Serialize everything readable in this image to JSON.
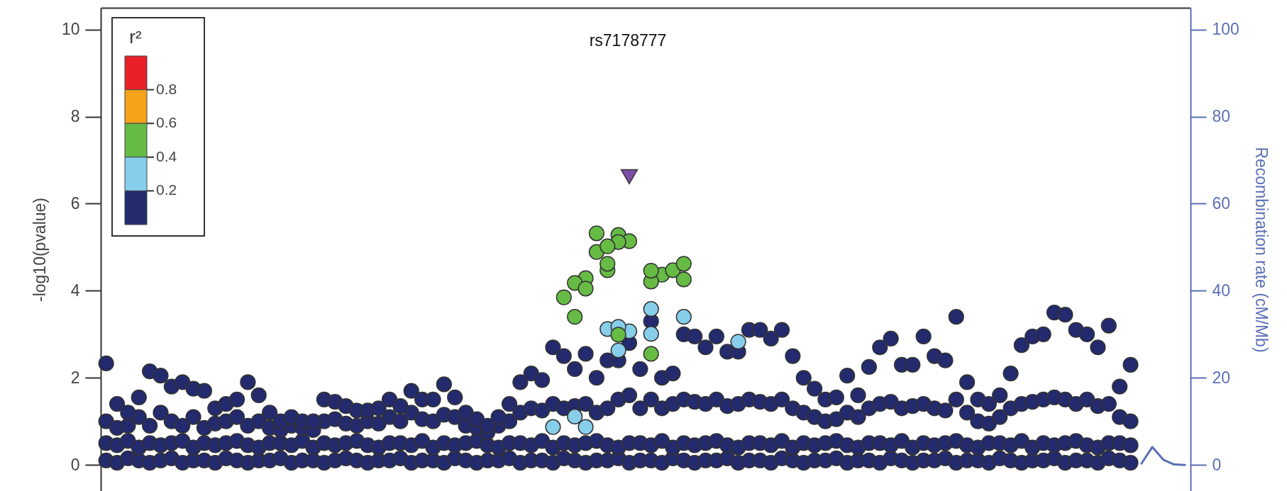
{
  "chart_data": {
    "type": "scatter",
    "title": "rs7178777",
    "ylabel": "-log10(pvalue)",
    "y2label": "Recombination rate (cM/Mb)",
    "annotations": [
      "r²",
      "0.8",
      "0.6",
      "0.4",
      "0.2"
    ],
    "tick_labels": "y",
    "ylim": [
      -0.6,
      10.5
    ],
    "yticks": [
      0,
      2,
      4,
      6,
      8,
      10
    ],
    "y2lim": [
      -6,
      105
    ],
    "y2ticks": [
      0,
      20,
      40,
      60,
      80,
      100
    ],
    "categories": [
      null,
      null,
      null,
      null,
      null,
      null,
      null,
      null,
      null,
      null,
      null,
      null,
      null,
      null,
      null,
      null,
      null,
      null,
      null,
      null,
      null,
      null,
      null,
      null,
      null,
      null,
      null,
      null,
      null,
      null,
      null,
      null,
      null,
      null,
      null,
      null,
      null,
      null,
      null,
      null,
      null,
      null,
      null,
      null,
      null,
      null,
      null,
      null,
      null,
      null,
      null,
      null,
      null,
      null,
      null,
      null,
      null,
      null,
      null,
      null,
      null,
      null,
      null,
      null,
      null,
      null,
      null,
      null,
      null,
      null,
      null,
      null,
      null,
      null,
      null,
      null,
      null,
      null,
      null,
      null,
      null,
      null,
      null,
      null,
      null,
      null,
      null,
      null,
      null,
      null,
      null,
      null,
      null,
      null,
      null,
      null,
      null,
      null,
      null,
      null
    ],
    "series": [
      {
        "marker": "circle",
        "color": "#232a6e",
        "values": [
          0.1,
          0.05,
          0.15,
          0.1,
          0.05,
          0.1,
          0.15,
          0.05,
          0.1,
          0.1,
          0.05,
          0.15,
          0.1,
          0.05,
          0.1,
          0.1,
          0.15,
          0.05,
          0.1,
          0.1,
          0.05,
          0.1,
          0.15,
          0.1,
          0.05,
          0.1,
          0.1,
          0.15,
          0.05,
          0.1,
          0.1,
          0.05,
          0.15,
          0.1,
          0.05,
          0.1,
          0.1,
          0.15,
          0.05,
          0.1,
          0.1,
          0.05,
          0.15,
          0.1,
          0.05,
          0.1,
          0.1,
          0.15,
          0.05,
          0.1,
          0.1,
          0.05,
          0.15,
          0.1,
          0.05,
          0.1,
          0.1,
          0.15,
          0.05,
          0.1,
          0.1,
          0.05,
          0.15,
          0.1,
          0.05,
          0.1,
          0.1,
          0.15,
          0.05,
          0.1,
          0.1,
          0.05,
          0.15,
          0.1,
          0.05,
          0.1,
          0.1,
          0.15,
          0.05,
          0.1,
          0.1,
          0.05,
          0.15,
          0.1,
          0.05,
          0.1,
          0.1,
          0.15,
          0.05,
          0.1,
          0.1,
          0.05,
          0.15,
          0.1,
          0.05,
          null,
          null,
          null,
          null,
          null
        ]
      },
      {
        "marker": "circle",
        "color": "#232a6e",
        "values": [
          0.5,
          0.45,
          0.55,
          0.4,
          0.5,
          0.45,
          0.5,
          0.55,
          0.4,
          0.5,
          0.45,
          0.5,
          0.55,
          0.45,
          0.4,
          0.5,
          0.5,
          0.45,
          0.55,
          0.4,
          0.5,
          0.45,
          0.5,
          0.55,
          0.45,
          0.4,
          0.5,
          0.5,
          0.45,
          0.55,
          0.4,
          0.5,
          0.45,
          0.5,
          0.55,
          0.45,
          0.4,
          0.5,
          0.5,
          0.45,
          0.55,
          0.4,
          0.5,
          0.45,
          0.5,
          0.55,
          0.45,
          0.4,
          0.5,
          0.5,
          0.45,
          0.55,
          0.4,
          0.5,
          0.45,
          0.5,
          0.55,
          0.45,
          0.4,
          0.5,
          0.5,
          0.45,
          0.55,
          0.4,
          0.5,
          0.45,
          0.5,
          0.55,
          0.45,
          0.4,
          0.5,
          0.5,
          0.45,
          0.55,
          0.4,
          0.5,
          0.45,
          0.5,
          0.55,
          0.45,
          0.4,
          0.5,
          0.5,
          0.45,
          0.55,
          0.4,
          0.5,
          0.45,
          0.5,
          0.55,
          0.45,
          0.4,
          0.5,
          0.5,
          0.45,
          null,
          null,
          null,
          null,
          null
        ]
      },
      {
        "marker": "circle",
        "color": "#232a6e",
        "values": [
          1.0,
          0.85,
          0.9,
          1.1,
          0.9,
          1.2,
          1.0,
          0.9,
          1.1,
          0.85,
          0.95,
          1.0,
          1.1,
          0.9,
          1.0,
          0.85,
          0.8,
          0.9,
          0.85,
          0.8,
          1.0,
          1.05,
          0.95,
          0.9,
          1.0,
          0.95,
          1.1,
          1.0,
          1.2,
          1.05,
          1.0,
          1.15,
          1.1,
          0.9,
          0.85,
          0.75,
          0.9,
          1.0,
          1.2,
          1.3,
          1.25,
          1.4,
          1.3,
          1.35,
          1.4,
          1.2,
          1.3,
          1.5,
          1.6,
          1.3,
          1.5,
          1.3,
          1.4,
          1.5,
          1.45,
          1.4,
          1.5,
          1.35,
          1.4,
          1.5,
          1.45,
          1.4,
          1.5,
          1.3,
          1.2,
          1.1,
          1.0,
          1.05,
          1.2,
          1.1,
          1.3,
          1.4,
          1.45,
          1.3,
          1.35,
          1.4,
          1.3,
          1.25,
          1.5,
          1.2,
          1.0,
          0.95,
          1.1,
          1.3,
          1.4,
          1.45,
          1.5,
          1.55,
          1.5,
          1.4,
          1.5,
          1.35,
          1.4,
          1.1,
          1.0,
          null,
          null,
          null,
          null,
          null
        ]
      },
      {
        "marker": "circle",
        "color": "#232a6e",
        "values": [
          2.33,
          1.4,
          1.2,
          1.55,
          2.15,
          2.05,
          1.8,
          1.9,
          1.75,
          1.7,
          1.3,
          1.4,
          1.5,
          1.9,
          1.6,
          1.2,
          1.0,
          1.1,
          1.0,
          1.0,
          1.5,
          1.45,
          1.35,
          1.25,
          1.25,
          1.3,
          1.5,
          1.35,
          1.7,
          1.5,
          1.5,
          1.85,
          1.55,
          1.2,
          1.05,
          0.9,
          1.1,
          1.4,
          1.9,
          2.1,
          1.95,
          2.7,
          2.5,
          2.2,
          2.55,
          2.0,
          2.4,
          2.4,
          2.8,
          2.2,
          3.3,
          2.0,
          2.1,
          3.0,
          2.95,
          2.7,
          2.95,
          2.6,
          2.6,
          3.1,
          3.1,
          2.9,
          3.1,
          2.5,
          2.0,
          1.75,
          1.5,
          1.55,
          2.05,
          1.6,
          2.25,
          2.7,
          2.9,
          2.3,
          2.3,
          2.95,
          2.5,
          2.4,
          3.4,
          1.9,
          1.5,
          1.4,
          1.6,
          2.1,
          2.75,
          2.95,
          3.0,
          3.5,
          3.45,
          3.1,
          3.0,
          2.7,
          3.2,
          1.8,
          2.3,
          null,
          null,
          null,
          null,
          null
        ]
      },
      {
        "marker": "circle",
        "color": "#87ceeb",
        "values": [
          null,
          null,
          null,
          null,
          null,
          null,
          null,
          null,
          null,
          null,
          null,
          null,
          null,
          null,
          null,
          null,
          null,
          null,
          null,
          null,
          null,
          null,
          null,
          null,
          null,
          null,
          null,
          null,
          null,
          null,
          null,
          null,
          null,
          null,
          null,
          null,
          null,
          null,
          null,
          null,
          null,
          0.87,
          null,
          1.11,
          0.87,
          null,
          3.12,
          2.63,
          3.07,
          null,
          3.58,
          null,
          null,
          3.4,
          null,
          null,
          null,
          null,
          2.83,
          null,
          null,
          null,
          null,
          null,
          null,
          null,
          null,
          null,
          null,
          null,
          null,
          null,
          null,
          null,
          null,
          null,
          null,
          null,
          null,
          null,
          null,
          null,
          null,
          null,
          null,
          null,
          null,
          null,
          null,
          null,
          null,
          null,
          null,
          null,
          null,
          null,
          null,
          null,
          null,
          null
        ]
      },
      {
        "marker": "circle",
        "color": "#87ceeb",
        "values": [
          null,
          null,
          null,
          null,
          null,
          null,
          null,
          null,
          null,
          null,
          null,
          null,
          null,
          null,
          null,
          null,
          null,
          null,
          null,
          null,
          null,
          null,
          null,
          null,
          null,
          null,
          null,
          null,
          null,
          null,
          null,
          null,
          null,
          null,
          null,
          null,
          null,
          null,
          null,
          null,
          null,
          null,
          null,
          null,
          null,
          null,
          null,
          3.17,
          null,
          null,
          3.01,
          null,
          null,
          null,
          null,
          null,
          null,
          null,
          null,
          null,
          null,
          null,
          null,
          null,
          null,
          null,
          null,
          null,
          null,
          null,
          null,
          null,
          null,
          null,
          null,
          null,
          null,
          null,
          null,
          null,
          null,
          null,
          null,
          null,
          null,
          null,
          null,
          null,
          null,
          null,
          null,
          null,
          null,
          null,
          null,
          null,
          null,
          null,
          null,
          null
        ]
      },
      {
        "marker": "circle",
        "color": "#66bb44",
        "values": [
          null,
          null,
          null,
          null,
          null,
          null,
          null,
          null,
          null,
          null,
          null,
          null,
          null,
          null,
          null,
          null,
          null,
          null,
          null,
          null,
          null,
          null,
          null,
          null,
          null,
          null,
          null,
          null,
          null,
          null,
          null,
          null,
          null,
          null,
          null,
          null,
          null,
          null,
          null,
          null,
          null,
          null,
          3.85,
          3.4,
          4.29,
          4.89,
          4.47,
          5.28,
          5.14,
          null,
          2.55,
          4.37,
          4.47,
          4.62,
          null,
          null,
          null,
          null,
          null,
          null,
          null,
          null,
          null,
          null,
          null,
          null,
          null,
          null,
          null,
          null,
          null,
          null,
          null,
          null,
          null,
          null,
          null,
          null,
          null,
          null,
          null,
          null,
          null,
          null,
          null,
          null,
          null,
          null,
          null,
          null,
          null,
          null,
          null,
          null,
          null,
          null,
          null,
          null,
          null,
          null
        ]
      },
      {
        "marker": "circle",
        "color": "#66bb44",
        "values": [
          null,
          null,
          null,
          null,
          null,
          null,
          null,
          null,
          null,
          null,
          null,
          null,
          null,
          null,
          null,
          null,
          null,
          null,
          null,
          null,
          null,
          null,
          null,
          null,
          null,
          null,
          null,
          null,
          null,
          null,
          null,
          null,
          null,
          null,
          null,
          null,
          null,
          null,
          null,
          null,
          null,
          null,
          null,
          4.18,
          4.05,
          5.32,
          4.62,
          5.12,
          null,
          null,
          4.21,
          null,
          null,
          4.26,
          null,
          null,
          null,
          null,
          null,
          null,
          null,
          null,
          null,
          null,
          null,
          null,
          null,
          null,
          null,
          null,
          null,
          null,
          null,
          null,
          null,
          null,
          null,
          null,
          null,
          null,
          null,
          null,
          null,
          null,
          null,
          null,
          null,
          null,
          null,
          null,
          null,
          null,
          null,
          null,
          null,
          null,
          null,
          null,
          null,
          null
        ]
      },
      {
        "marker": "circle",
        "color": "#66bb44",
        "values": [
          null,
          null,
          null,
          null,
          null,
          null,
          null,
          null,
          null,
          null,
          null,
          null,
          null,
          null,
          null,
          null,
          null,
          null,
          null,
          null,
          null,
          null,
          null,
          null,
          null,
          null,
          null,
          null,
          null,
          null,
          null,
          null,
          null,
          null,
          null,
          null,
          null,
          null,
          null,
          null,
          null,
          null,
          null,
          null,
          null,
          null,
          5.02,
          2.99,
          null,
          null,
          4.46,
          null,
          null,
          null,
          null,
          null,
          null,
          null,
          null,
          null,
          null,
          null,
          null,
          null,
          null,
          null,
          null,
          null,
          null,
          null,
          null,
          null,
          null,
          null,
          null,
          null,
          null,
          null,
          null,
          null,
          null,
          null,
          null,
          null,
          null,
          null,
          null,
          null,
          null,
          null,
          null,
          null,
          null,
          null,
          null,
          null,
          null,
          null,
          null,
          null
        ]
      },
      {
        "marker": "triangle",
        "color": "#7b4fa6",
        "values": [
          null,
          null,
          null,
          null,
          null,
          null,
          null,
          null,
          null,
          null,
          null,
          null,
          null,
          null,
          null,
          null,
          null,
          null,
          null,
          null,
          null,
          null,
          null,
          null,
          null,
          null,
          null,
          null,
          null,
          null,
          null,
          null,
          null,
          null,
          null,
          null,
          null,
          null,
          null,
          null,
          null,
          null,
          null,
          null,
          null,
          null,
          null,
          null,
          6.62,
          null,
          null,
          null,
          null,
          null,
          null,
          null,
          null,
          null,
          null,
          null,
          null,
          null,
          null,
          null,
          null,
          null,
          null,
          null,
          null,
          null,
          null,
          null,
          null,
          null,
          null,
          null,
          null,
          null,
          null,
          null,
          null,
          null,
          null,
          null,
          null,
          null,
          null,
          null,
          null,
          null,
          null,
          null,
          null,
          null,
          null,
          null,
          null,
          null,
          null,
          null
        ]
      },
      {
        "type": "line",
        "axis": "y2",
        "color": "#5b6fb5",
        "line_style": "solid",
        "values": [
          null,
          null,
          null,
          null,
          null,
          null,
          null,
          null,
          null,
          null,
          null,
          null,
          null,
          null,
          null,
          null,
          null,
          null,
          null,
          null,
          null,
          null,
          null,
          null,
          null,
          null,
          null,
          null,
          null,
          null,
          null,
          null,
          null,
          null,
          null,
          null,
          null,
          null,
          null,
          null,
          null,
          null,
          null,
          null,
          null,
          null,
          null,
          null,
          null,
          null,
          null,
          null,
          null,
          null,
          null,
          null,
          null,
          null,
          null,
          null,
          null,
          null,
          null,
          null,
          null,
          null,
          null,
          null,
          null,
          null,
          null,
          null,
          null,
          null,
          null,
          null,
          null,
          null,
          null,
          null,
          null,
          null,
          null,
          null,
          null,
          null,
          null,
          null,
          null,
          null,
          null,
          null,
          null,
          null,
          null,
          0.3,
          4.1,
          1.2,
          0.1,
          0
        ]
      }
    ]
  }
}
